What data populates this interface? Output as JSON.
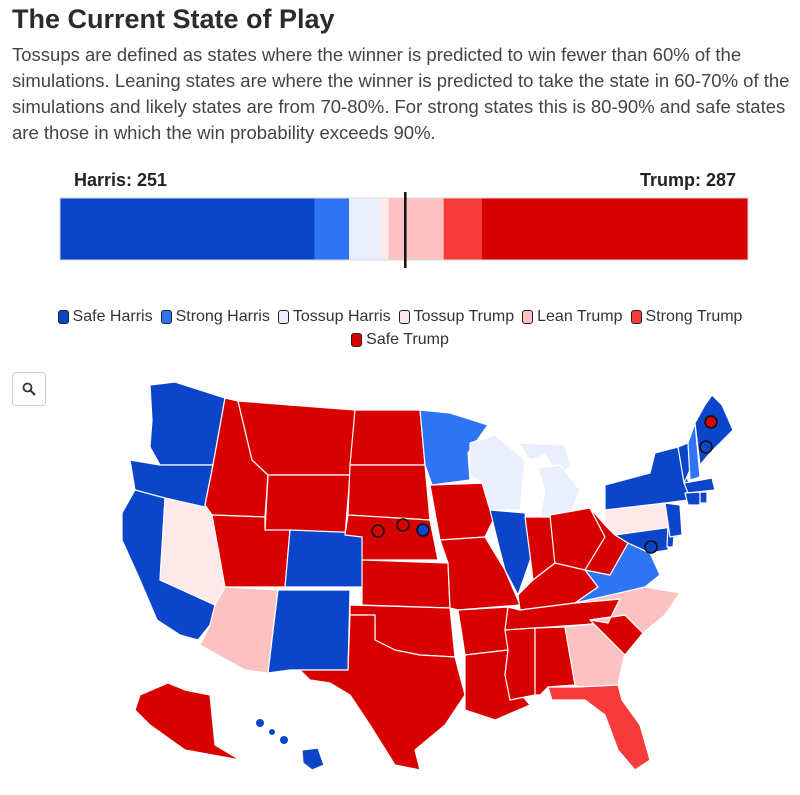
{
  "page": {
    "title": "The Current State of Play",
    "description": "Tossups are defined as states where the winner is predicted to win fewer than 60% of the simulations. Leaning states are where the winner is predicted to take the state in 60-70% of the simulations and likely states are from 70-80%. For strong states this is 80-90% and safe states are those in which the win probability exceeds 90%."
  },
  "bar": {
    "harris_label": "Harris: 251",
    "trump_label": "Trump: 287"
  },
  "colors": {
    "safe_harris": "#0b45c9",
    "strong_harris": "#2f74f4",
    "tossup_harris": "#e9effd",
    "tossup_trump": "#fde9e9",
    "lean_trump": "#fcc2c2",
    "strong_trump": "#f73b3b",
    "safe_trump": "#d90000"
  },
  "legend": [
    {
      "key": "safe_harris",
      "label": "Safe Harris"
    },
    {
      "key": "strong_harris",
      "label": "Strong Harris"
    },
    {
      "key": "tossup_harris",
      "label": "Tossup Harris"
    },
    {
      "key": "tossup_trump",
      "label": "Tossup Trump"
    },
    {
      "key": "lean_trump",
      "label": "Lean Trump"
    },
    {
      "key": "strong_trump",
      "label": "Strong Trump"
    },
    {
      "key": "safe_trump",
      "label": "Safe Trump"
    }
  ],
  "zoom_icon": "magnifier-icon",
  "chart_data": {
    "type": "bar",
    "orientation": "horizontal-stacked",
    "threshold": 270,
    "total": 538,
    "segments": [
      {
        "category": "safe_harris",
        "value": 199
      },
      {
        "category": "strong_harris",
        "value": 27
      },
      {
        "category": "tossup_harris",
        "value": 25
      },
      {
        "category": "tossup_trump",
        "value": 6
      },
      {
        "category": "lean_trump",
        "value": 43
      },
      {
        "category": "strong_trump",
        "value": 30
      },
      {
        "category": "safe_trump",
        "value": 208
      }
    ],
    "states": [
      {
        "state": "WA",
        "category": "safe_harris"
      },
      {
        "state": "OR",
        "category": "safe_harris"
      },
      {
        "state": "CA",
        "category": "safe_harris"
      },
      {
        "state": "NV",
        "category": "tossup_trump"
      },
      {
        "state": "ID",
        "category": "safe_trump"
      },
      {
        "state": "MT",
        "category": "safe_trump"
      },
      {
        "state": "WY",
        "category": "safe_trump"
      },
      {
        "state": "UT",
        "category": "safe_trump"
      },
      {
        "state": "AZ",
        "category": "lean_trump"
      },
      {
        "state": "CO",
        "category": "safe_harris"
      },
      {
        "state": "NM",
        "category": "safe_harris"
      },
      {
        "state": "ND",
        "category": "safe_trump"
      },
      {
        "state": "SD",
        "category": "safe_trump"
      },
      {
        "state": "NE",
        "category": "safe_trump"
      },
      {
        "state": "KS",
        "category": "safe_trump"
      },
      {
        "state": "OK",
        "category": "safe_trump"
      },
      {
        "state": "TX",
        "category": "safe_trump"
      },
      {
        "state": "MN",
        "category": "strong_harris"
      },
      {
        "state": "IA",
        "category": "safe_trump"
      },
      {
        "state": "MO",
        "category": "safe_trump"
      },
      {
        "state": "AR",
        "category": "safe_trump"
      },
      {
        "state": "LA",
        "category": "safe_trump"
      },
      {
        "state": "WI",
        "category": "tossup_harris"
      },
      {
        "state": "MI",
        "category": "tossup_harris"
      },
      {
        "state": "IL",
        "category": "safe_harris"
      },
      {
        "state": "IN",
        "category": "safe_trump"
      },
      {
        "state": "OH",
        "category": "safe_trump"
      },
      {
        "state": "KY",
        "category": "safe_trump"
      },
      {
        "state": "TN",
        "category": "safe_trump"
      },
      {
        "state": "MS",
        "category": "safe_trump"
      },
      {
        "state": "AL",
        "category": "safe_trump"
      },
      {
        "state": "GA",
        "category": "lean_trump"
      },
      {
        "state": "FL",
        "category": "strong_trump"
      },
      {
        "state": "SC",
        "category": "safe_trump"
      },
      {
        "state": "NC",
        "category": "lean_trump"
      },
      {
        "state": "VA",
        "category": "strong_harris"
      },
      {
        "state": "WV",
        "category": "safe_trump"
      },
      {
        "state": "PA",
        "category": "tossup_trump"
      },
      {
        "state": "NY",
        "category": "safe_harris"
      },
      {
        "state": "VT",
        "category": "safe_harris"
      },
      {
        "state": "NH",
        "category": "strong_harris"
      },
      {
        "state": "ME",
        "category": "safe_harris"
      },
      {
        "state": "MA",
        "category": "safe_harris"
      },
      {
        "state": "CT",
        "category": "safe_harris"
      },
      {
        "state": "RI",
        "category": "safe_harris"
      },
      {
        "state": "NJ",
        "category": "safe_harris"
      },
      {
        "state": "DE",
        "category": "safe_harris"
      },
      {
        "state": "MD",
        "category": "safe_harris"
      },
      {
        "state": "AK",
        "category": "safe_trump"
      },
      {
        "state": "HI",
        "category": "safe_harris"
      }
    ],
    "district_markers": [
      {
        "district": "NE-1",
        "category": "safe_trump"
      },
      {
        "district": "NE-2",
        "category": "safe_trump"
      },
      {
        "district": "NE-3",
        "category": "safe_harris"
      },
      {
        "district": "ME-1",
        "category": "safe_harris"
      },
      {
        "district": "ME-2",
        "category": "safe_trump"
      },
      {
        "district": "DC",
        "category": "safe_harris"
      }
    ]
  }
}
